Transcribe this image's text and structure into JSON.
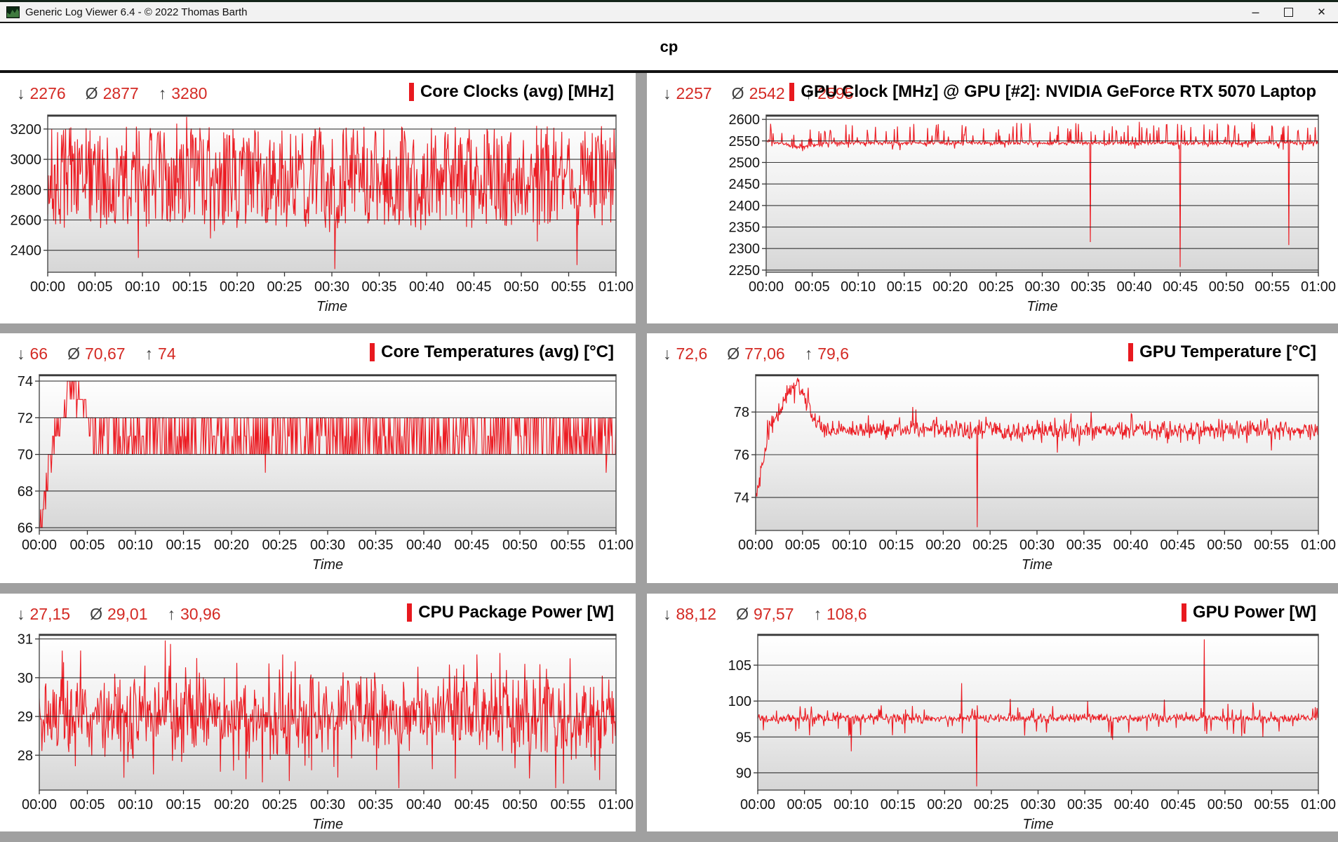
{
  "window": {
    "title": "Generic Log Viewer 6.4 - © 2022 Thomas Barth",
    "controls": {
      "minimize": "–",
      "maximize": "□",
      "close": "✕"
    }
  },
  "header": {
    "title": "cp"
  },
  "glyphs": {
    "min": "↓",
    "avg": "Ø",
    "max": "↑"
  },
  "colors": {
    "series": "#ec1c23",
    "accent_bar": "#e8191f",
    "stats_value": "#d42a24",
    "stats_glyph": "#3f3f3f",
    "grid": "#222222",
    "plot_border": "#4b4b4b",
    "tick": "#333333",
    "axis_text": "#141414",
    "divider": "#a0a0a0",
    "plot_bg_top": "#ffffff",
    "plot_bg_mid": "#efefef",
    "plot_bg_bottom": "#d6d6d6"
  },
  "chart_data": [
    {
      "type": "line",
      "title": "Core Clocks (avg) [MHz]",
      "stats": {
        "min": "2276",
        "avg": "2877",
        "max": "3280"
      },
      "xlabel": "Time",
      "x_ticks": [
        "00:00",
        "00:05",
        "00:10",
        "00:15",
        "00:20",
        "00:25",
        "00:30",
        "00:35",
        "00:40",
        "00:45",
        "00:50",
        "00:55",
        "01:00"
      ],
      "y_ticks": [
        2400,
        2600,
        2800,
        3000,
        3200
      ],
      "ylim": [
        2255,
        3292
      ],
      "xlim_minutes": [
        0,
        60
      ],
      "grid": true,
      "series_spec": {
        "seed": 7,
        "n": 860,
        "base": 2880,
        "noise": {
          "type": "uniform",
          "amp": 335
        },
        "spikes": {
          "prob": 0.1,
          "amp": [
            0,
            85
          ]
        },
        "dips": {
          "prob": 0.05,
          "amp": [
            20,
            150
          ]
        },
        "clamp": [
          2276,
          3280
        ],
        "events": [
          [
            9.6,
            2350
          ],
          [
            17.2,
            2478
          ],
          [
            30.3,
            2276
          ],
          [
            55.9,
            2302
          ]
        ]
      }
    },
    {
      "type": "line",
      "title": "GPU Clock [MHz] @ GPU [#2]: NVIDIA GeForce RTX 5070 Laptop",
      "stats": {
        "min": "2257",
        "avg": "2542",
        "max": "2595"
      },
      "xlabel": "Time",
      "x_ticks": [
        "00:00",
        "00:05",
        "00:10",
        "00:15",
        "00:20",
        "00:25",
        "00:30",
        "00:35",
        "00:40",
        "00:45",
        "00:50",
        "00:55",
        "01:00"
      ],
      "y_ticks": [
        2250,
        2300,
        2350,
        2400,
        2450,
        2500,
        2550,
        2600
      ],
      "ylim": [
        2245,
        2610
      ],
      "xlim_minutes": [
        0,
        60
      ],
      "grid": true,
      "series_spec": {
        "seed": 11,
        "n": 880,
        "base": 2545,
        "noise": {
          "type": "gauss",
          "amp": 2.2
        },
        "ramp": [
          [
            0,
            2551
          ],
          [
            0.6,
            2547
          ],
          [
            2.2,
            2543
          ],
          [
            3.0,
            2535
          ],
          [
            4.2,
            2537
          ],
          [
            5.5,
            2542
          ],
          [
            6.5,
            2545
          ]
        ],
        "spikes": {
          "prob": 0.14,
          "amp": [
            8,
            48
          ]
        },
        "dips": {
          "prob": 0.05,
          "amp": [
            3,
            14
          ]
        },
        "clamp": [
          2257,
          2595
        ],
        "events": [
          [
            35.2,
            2315
          ],
          [
            45.0,
            2257
          ],
          [
            56.8,
            2308
          ]
        ]
      }
    },
    {
      "type": "line",
      "title": "Core Temperatures (avg) [°C]",
      "stats": {
        "min": "66",
        "avg": "70,67",
        "max": "74"
      },
      "xlabel": "Time",
      "x_ticks": [
        "00:00",
        "00:05",
        "00:10",
        "00:15",
        "00:20",
        "00:25",
        "00:30",
        "00:35",
        "00:40",
        "00:45",
        "00:50",
        "00:55",
        "01:00"
      ],
      "y_ticks": [
        66,
        68,
        70,
        72,
        74
      ],
      "ylim": [
        65.85,
        74.35
      ],
      "xlim_minutes": [
        0,
        60
      ],
      "grid": true,
      "series_spec": {
        "seed": 23,
        "n": 820,
        "base": 70.9,
        "quantize": true,
        "noise": {
          "type": "uniform",
          "amp": 0.8
        },
        "ramp": [
          [
            0,
            66
          ],
          [
            0.3,
            66.8
          ],
          [
            0.6,
            67.6
          ],
          [
            0.9,
            69
          ],
          [
            1.2,
            70
          ],
          [
            1.5,
            70.8
          ],
          [
            1.9,
            71.6
          ],
          [
            2.3,
            71.2
          ],
          [
            2.7,
            72.4
          ],
          [
            3.1,
            73.6
          ],
          [
            3.5,
            73.9
          ],
          [
            3.9,
            73.2
          ],
          [
            4.3,
            73.8
          ],
          [
            4.7,
            72.6
          ],
          [
            5.1,
            72
          ],
          [
            5.5,
            71.2
          ]
        ],
        "choices": [
          [
            70,
            0.44
          ],
          [
            71,
            0.14
          ],
          [
            72,
            0.42
          ]
        ],
        "clamp": [
          66,
          74
        ],
        "events": [
          [
            23.5,
            69
          ],
          [
            59.0,
            69
          ]
        ]
      }
    },
    {
      "type": "line",
      "title": "GPU Temperature [°C]",
      "stats": {
        "min": "72,6",
        "avg": "77,06",
        "max": "79,6"
      },
      "xlabel": "Time",
      "x_ticks": [
        "00:00",
        "00:05",
        "00:10",
        "00:15",
        "00:20",
        "00:25",
        "00:30",
        "00:35",
        "00:40",
        "00:45",
        "00:50",
        "00:55",
        "01:00"
      ],
      "y_ticks": [
        74,
        76,
        78
      ],
      "ylim": [
        72.45,
        79.75
      ],
      "xlim_minutes": [
        0,
        60
      ],
      "grid": true,
      "series_spec": {
        "seed": 31,
        "n": 900,
        "base": 77.15,
        "noise": {
          "type": "gauss",
          "amp": 0.22
        },
        "ramp": [
          [
            0,
            73.9
          ],
          [
            0.4,
            74.6
          ],
          [
            0.8,
            75.6
          ],
          [
            1.2,
            76.6
          ],
          [
            1.6,
            77.3
          ],
          [
            2.0,
            77.8
          ],
          [
            2.5,
            78.1
          ],
          [
            3.0,
            78.5
          ],
          [
            3.5,
            78.9
          ],
          [
            4.0,
            79.2
          ],
          [
            4.4,
            79.45
          ],
          [
            4.7,
            79.2
          ],
          [
            5.1,
            78.8
          ],
          [
            5.6,
            78.2
          ],
          [
            6.1,
            77.7
          ],
          [
            6.7,
            77.4
          ],
          [
            7.3,
            77.15
          ]
        ],
        "spikes": {
          "prob": 0.025,
          "amp": [
            0.3,
            0.95
          ]
        },
        "dips": {
          "prob": 0.03,
          "amp": [
            0.2,
            0.6
          ]
        },
        "clamp": [
          72.6,
          79.6
        ],
        "events": [
          [
            23.6,
            72.6
          ],
          [
            32.2,
            76.1
          ],
          [
            55.0,
            76.2
          ]
        ]
      }
    },
    {
      "type": "line",
      "title": "CPU Package Power [W]",
      "stats": {
        "min": "27,15",
        "avg": "29,01",
        "max": "30,96"
      },
      "xlabel": "Time",
      "x_ticks": [
        "00:00",
        "00:05",
        "00:10",
        "00:15",
        "00:20",
        "00:25",
        "00:30",
        "00:35",
        "00:40",
        "00:45",
        "00:50",
        "00:55",
        "01:00"
      ],
      "y_ticks": [
        28,
        29,
        30,
        31
      ],
      "ylim": [
        27.1,
        31.12
      ],
      "xlim_minutes": [
        0,
        60
      ],
      "grid": true,
      "series_spec": {
        "seed": 41,
        "n": 880,
        "base": 29.0,
        "noise": {
          "type": "gauss",
          "amp": 0.5
        },
        "spikes": {
          "prob": 0.05,
          "amp": [
            0.3,
            1.4
          ]
        },
        "dips": {
          "prob": 0.05,
          "amp": [
            0.3,
            1.2
          ]
        },
        "clamp": [
          27.15,
          30.96
        ],
        "events": [
          [
            2.4,
            30.7
          ],
          [
            13.1,
            30.96
          ],
          [
            23.2,
            27.3
          ],
          [
            25.3,
            30.6
          ],
          [
            37.4,
            27.15
          ],
          [
            45.5,
            30.6
          ],
          [
            51.0,
            27.4
          ],
          [
            55.2,
            30.5
          ]
        ]
      }
    },
    {
      "type": "line",
      "title": "GPU Power [W]",
      "stats": {
        "min": "88,12",
        "avg": "97,57",
        "max": "108,6"
      },
      "xlabel": "Time",
      "x_ticks": [
        "00:00",
        "00:05",
        "00:10",
        "00:15",
        "00:20",
        "00:25",
        "00:30",
        "00:35",
        "00:40",
        "00:45",
        "00:50",
        "00:55",
        "01:00"
      ],
      "y_ticks": [
        90,
        95,
        100,
        105
      ],
      "ylim": [
        87.6,
        109.3
      ],
      "xlim_minutes": [
        0,
        60
      ],
      "grid": true,
      "series_spec": {
        "seed": 53,
        "n": 900,
        "base": 97.6,
        "noise": {
          "type": "gauss",
          "amp": 0.28
        },
        "spikes": {
          "prob": 0.04,
          "amp": [
            0.5,
            2.0
          ]
        },
        "dips": {
          "prob": 0.05,
          "amp": [
            0.5,
            2.6
          ]
        },
        "clamp": [
          88.12,
          108.6
        ],
        "events": [
          [
            10.0,
            93.0
          ],
          [
            13.2,
            99.4
          ],
          [
            21.8,
            102.5
          ],
          [
            23.4,
            88.12
          ],
          [
            27.0,
            100.3
          ],
          [
            31.6,
            99.3
          ],
          [
            35.3,
            100.0
          ],
          [
            38.0,
            94.6
          ],
          [
            43.5,
            100.2
          ],
          [
            47.8,
            108.6
          ],
          [
            52.1,
            95.5
          ]
        ]
      }
    }
  ]
}
